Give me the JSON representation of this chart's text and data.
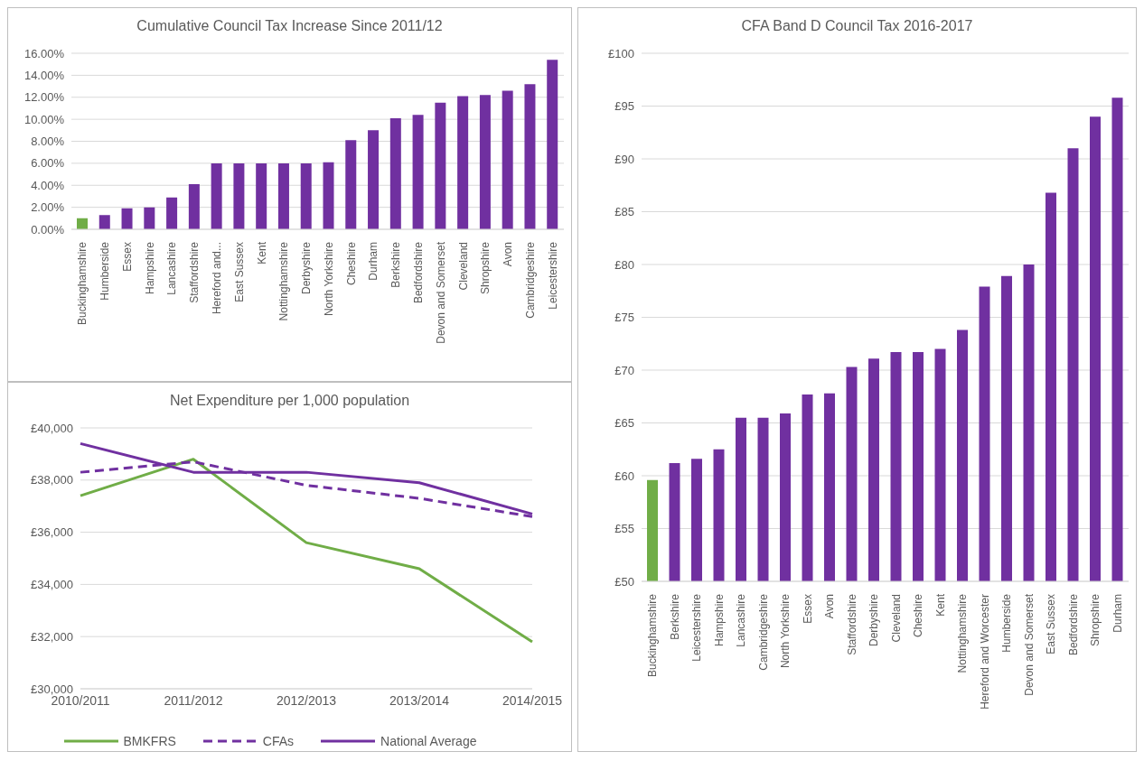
{
  "chart_data": [
    {
      "type": "bar",
      "title": "Cumulative Council Tax Increase Since 2011/12",
      "categories": [
        "Buckinghamshire",
        "Humberside",
        "Essex",
        "Hampshire",
        "Lancashire",
        "Staffordshire",
        "Hereford and...",
        "East Sussex",
        "Kent",
        "Nottinghamshire",
        "Derbyshire",
        "North Yorkshire",
        "Cheshire",
        "Durham",
        "Berkshire",
        "Bedfordshire",
        "Devon and Somerset",
        "Cleveland",
        "Shropshire",
        "Avon",
        "Cambridgeshire",
        "Leicestershire"
      ],
      "values": [
        1.0,
        1.3,
        1.9,
        2.0,
        2.9,
        4.1,
        6.0,
        6.0,
        6.0,
        6.0,
        6.0,
        6.1,
        8.1,
        9.0,
        10.1,
        10.4,
        11.5,
        12.1,
        12.2,
        12.6,
        13.2,
        15.4
      ],
      "colors": [
        "#70ad47",
        "#7030a0",
        "#7030a0",
        "#7030a0",
        "#7030a0",
        "#7030a0",
        "#7030a0",
        "#7030a0",
        "#7030a0",
        "#7030a0",
        "#7030a0",
        "#7030a0",
        "#7030a0",
        "#7030a0",
        "#7030a0",
        "#7030a0",
        "#7030a0",
        "#7030a0",
        "#7030a0",
        "#7030a0",
        "#7030a0",
        "#7030a0"
      ],
      "ylim": [
        0,
        16
      ],
      "yticks": [
        {
          "value": 0,
          "label": "0.00%"
        },
        {
          "value": 2,
          "label": "2.00%"
        },
        {
          "value": 4,
          "label": "4.00%"
        },
        {
          "value": 6,
          "label": "6.00%"
        },
        {
          "value": 8,
          "label": "8.00%"
        },
        {
          "value": 10,
          "label": "10.00%"
        },
        {
          "value": 12,
          "label": "12.00%"
        },
        {
          "value": 14,
          "label": "14.00%"
        },
        {
          "value": 16,
          "label": "16.00%"
        }
      ],
      "grid": "y"
    },
    {
      "type": "line",
      "title": "Net Expenditure per 1,000 population",
      "categories": [
        "2010/2011",
        "2011/2012",
        "2012/2013",
        "2013/2014",
        "2014/2015"
      ],
      "series": [
        {
          "name": "BMKFRS",
          "color": "#70ad47",
          "values": [
            37400,
            38800,
            35600,
            34600,
            31800
          ]
        },
        {
          "name": "CFAs",
          "color": "#7030a0",
          "line_style": "dashed",
          "values": [
            38300,
            38700,
            37800,
            37300,
            36600
          ]
        },
        {
          "name": "National Average",
          "color": "#7030a0",
          "values": [
            39400,
            38300,
            38300,
            37900,
            36700
          ]
        }
      ],
      "ylim": [
        30000,
        40000
      ],
      "yticks": [
        {
          "value": 30000,
          "label": "£30,000"
        },
        {
          "value": 32000,
          "label": "£32,000"
        },
        {
          "value": 34000,
          "label": "£34,000"
        },
        {
          "value": 36000,
          "label": "£36,000"
        },
        {
          "value": 38000,
          "label": "£38,000"
        },
        {
          "value": 40000,
          "label": "£40,000"
        }
      ],
      "grid": "y",
      "legend": "bottom",
      "marker": "none",
      "line_style": "solid"
    },
    {
      "type": "bar",
      "title": "CFA Band D Council Tax 2016-2017",
      "categories": [
        "Buckinghamshire",
        "Berkshire",
        "Leicestershire",
        "Hampshire",
        "Lancashire",
        "Cambridgeshire",
        "North Yorkshire",
        "Essex",
        "Avon",
        "Staffordshire",
        "Derbyshire",
        "Cleveland",
        "Cheshire",
        "Kent",
        "Nottinghamshire",
        "Hereford and Worcester",
        "Humberside",
        "Devon and Somerset",
        "East Sussex",
        "Bedfordshire",
        "Shropshire",
        "Durham"
      ],
      "values": [
        59.6,
        61.2,
        61.6,
        62.5,
        65.5,
        65.5,
        65.9,
        67.7,
        67.8,
        70.3,
        71.1,
        71.7,
        71.7,
        72.0,
        73.8,
        77.9,
        78.9,
        80.0,
        86.8,
        91.0,
        94.0,
        95.8
      ],
      "colors": [
        "#70ad47",
        "#7030a0",
        "#7030a0",
        "#7030a0",
        "#7030a0",
        "#7030a0",
        "#7030a0",
        "#7030a0",
        "#7030a0",
        "#7030a0",
        "#7030a0",
        "#7030a0",
        "#7030a0",
        "#7030a0",
        "#7030a0",
        "#7030a0",
        "#7030a0",
        "#7030a0",
        "#7030a0",
        "#7030a0",
        "#7030a0",
        "#7030a0"
      ],
      "ylim": [
        50,
        100
      ],
      "yticks": [
        {
          "value": 50,
          "label": "£50"
        },
        {
          "value": 55,
          "label": "£55"
        },
        {
          "value": 60,
          "label": "£60"
        },
        {
          "value": 65,
          "label": "£65"
        },
        {
          "value": 70,
          "label": "£70"
        },
        {
          "value": 75,
          "label": "£75"
        },
        {
          "value": 80,
          "label": "£80"
        },
        {
          "value": 85,
          "label": "£85"
        },
        {
          "value": 90,
          "label": "£90"
        },
        {
          "value": 95,
          "label": "£95"
        },
        {
          "value": 100,
          "label": "£100"
        }
      ],
      "grid": "y"
    }
  ]
}
